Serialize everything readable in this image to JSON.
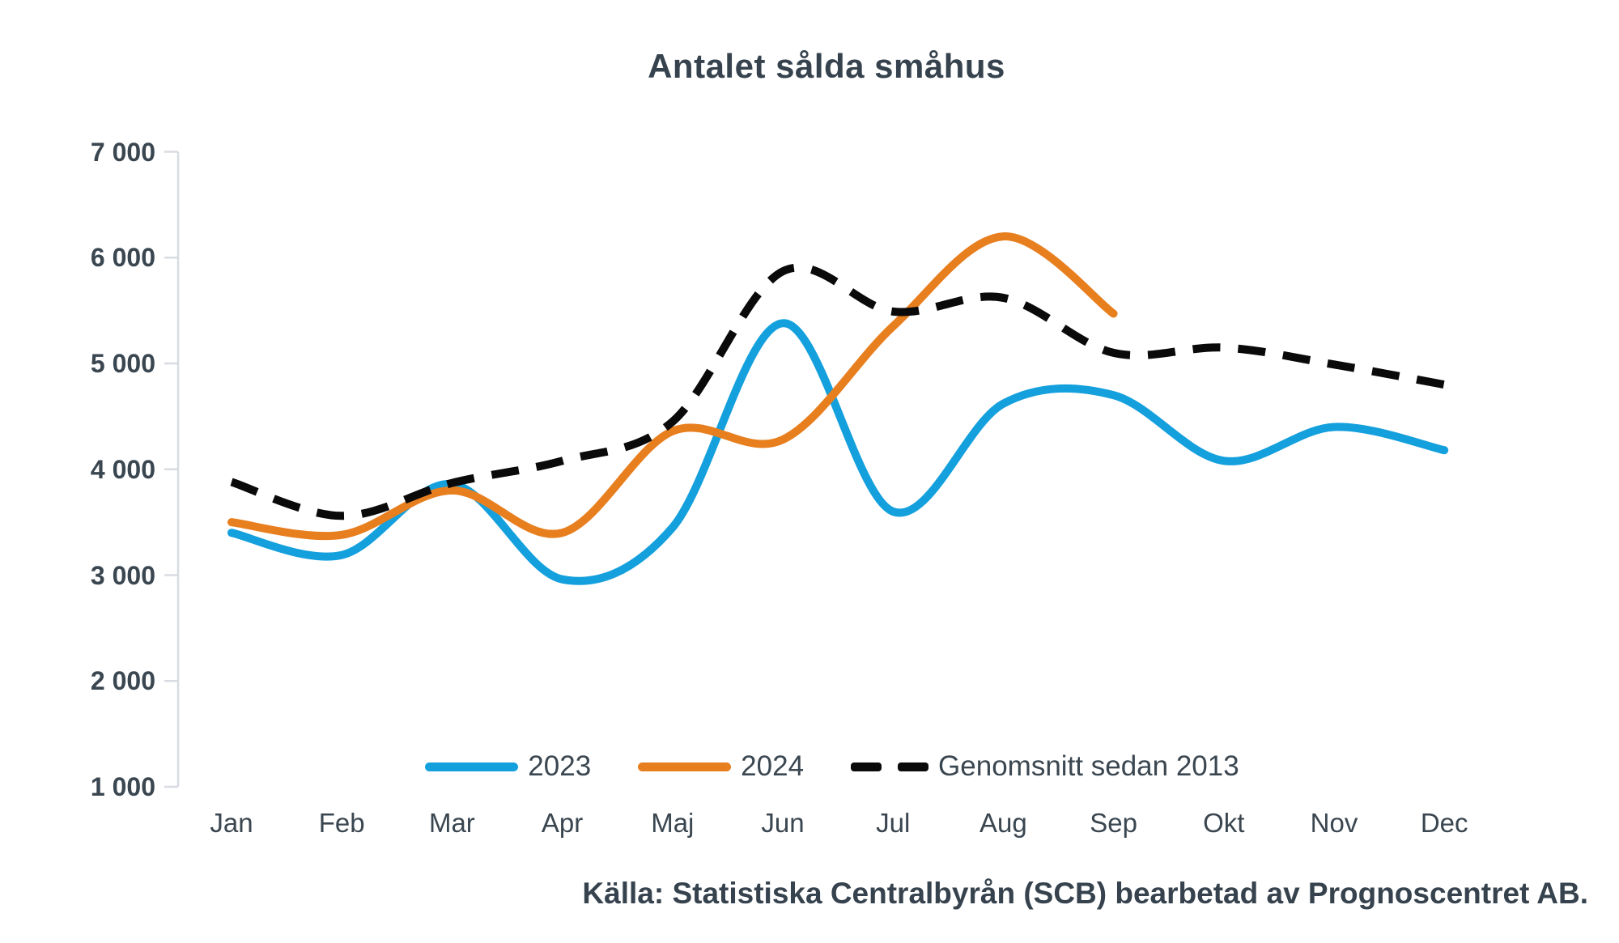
{
  "chart_data": {
    "type": "line",
    "title": "Antalet sålda småhus",
    "source": "Källa: Statistiska Centralbyrån (SCB) bearbetad av Prognoscentret AB.",
    "x_categories": [
      "Jan",
      "Feb",
      "Mar",
      "Apr",
      "Maj",
      "Jun",
      "Jul",
      "Aug",
      "Sep",
      "Okt",
      "Nov",
      "Dec"
    ],
    "y_ticks": [
      {
        "label": "7 000",
        "value": 7000
      },
      {
        "label": "6 000",
        "value": 6000
      },
      {
        "label": "5 000",
        "value": 5000
      },
      {
        "label": "4 000",
        "value": 4000
      },
      {
        "label": "3 000",
        "value": 3000
      },
      {
        "label": "2 000",
        "value": 2000
      },
      {
        "label": "1 000",
        "value": 1000
      }
    ],
    "ylim": [
      1000,
      7000
    ],
    "grid": false,
    "legend_position": "bottom",
    "axis_color": "#D8DCE2",
    "text_color": "#3A4650",
    "series": [
      {
        "name": "2023",
        "color": "#14A0DD",
        "style": "solid",
        "values": [
          3400,
          3190,
          3860,
          2960,
          3450,
          5380,
          3600,
          4620,
          4700,
          4080,
          4400,
          4180
        ]
      },
      {
        "name": "2024",
        "color": "#E87F1F",
        "style": "solid",
        "values": [
          3500,
          3380,
          3800,
          3400,
          4360,
          4280,
          5350,
          6200,
          5470
        ]
      },
      {
        "name": "Genomsnitt sedan 2013",
        "color": "#0A0A0A",
        "style": "dashed",
        "values": [
          3880,
          3560,
          3870,
          4080,
          4450,
          5870,
          5490,
          5620,
          5100,
          5150,
          4990,
          4800
        ]
      }
    ]
  }
}
